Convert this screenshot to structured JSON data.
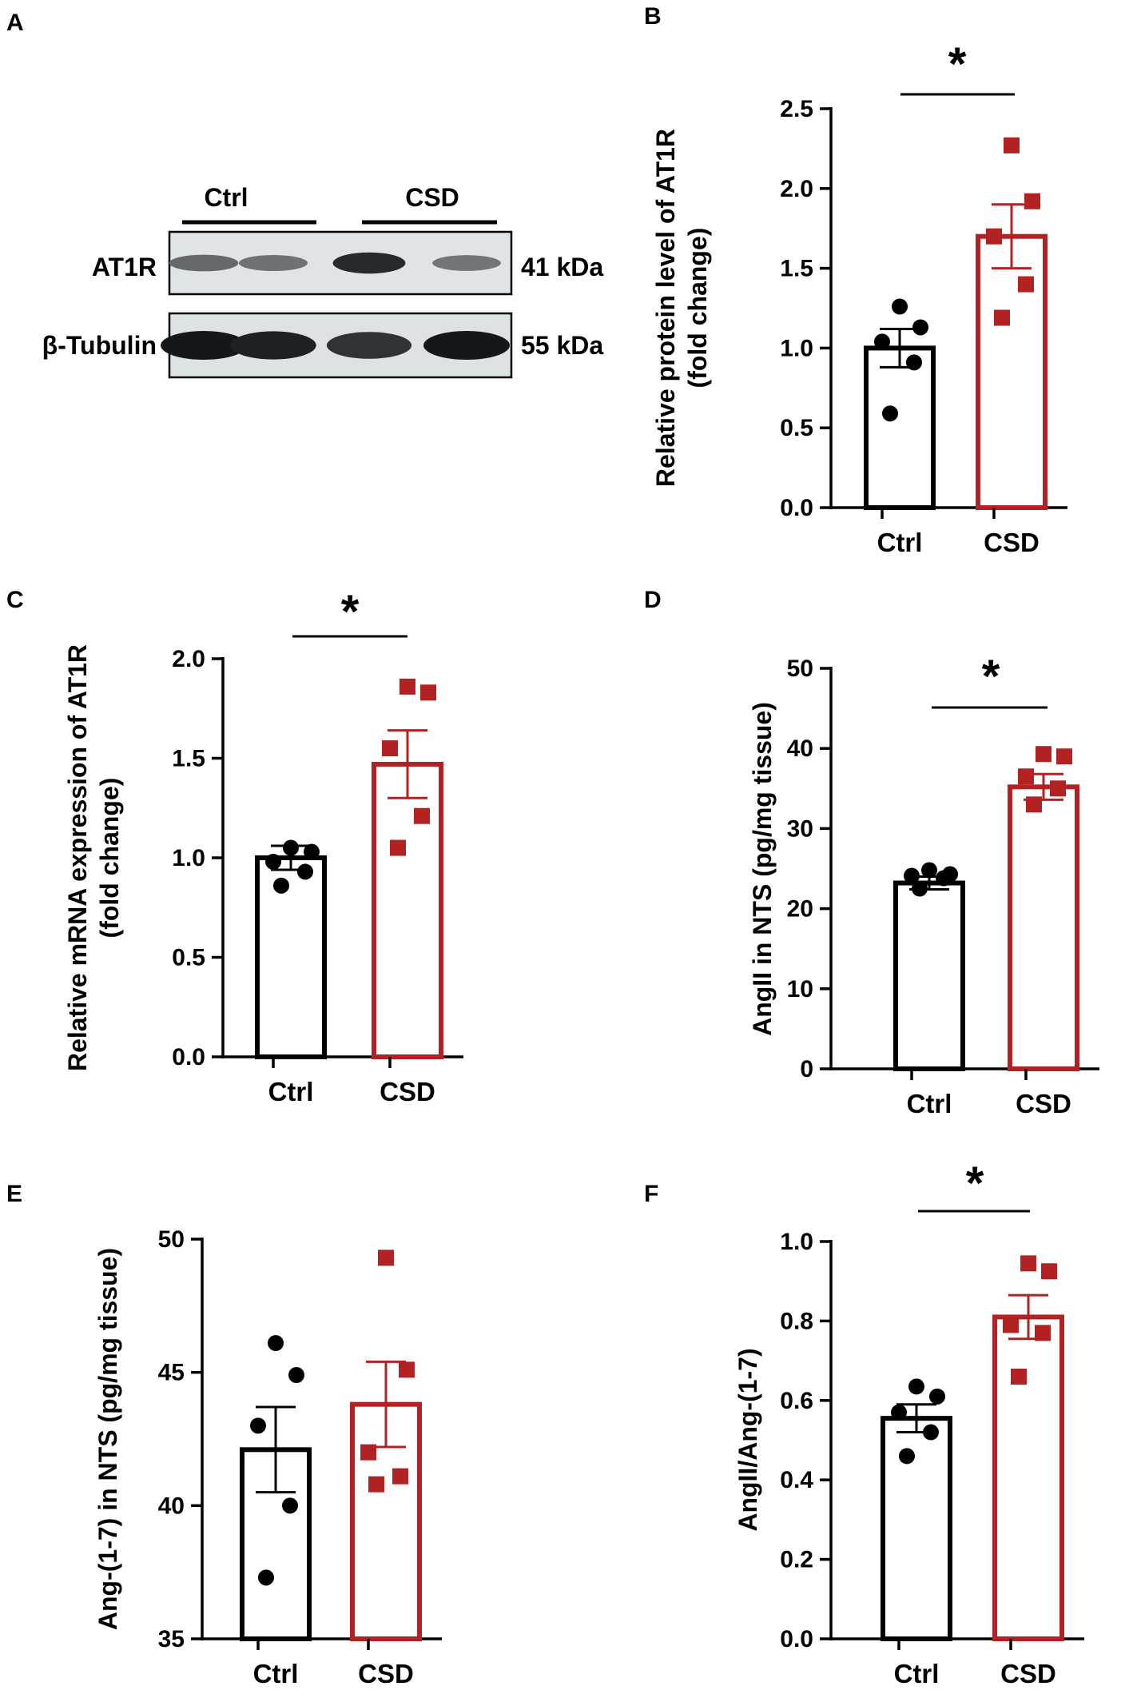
{
  "colors": {
    "ctrl": "#000000",
    "csd": "#b22222",
    "axis": "#000000"
  },
  "western_blot": {
    "panel_label": "A",
    "groups": [
      "Ctrl",
      "CSD"
    ],
    "rows": [
      {
        "name": "AT1R",
        "size": "41 kDa",
        "band_intensity": [
          0.55,
          0.5,
          0.9,
          0.48
        ]
      },
      {
        "name": "β-Tubulin",
        "size": "55 kDa",
        "band_intensity": [
          1.0,
          0.95,
          0.85,
          1.0
        ]
      }
    ]
  },
  "chart_data": [
    {
      "panel": "B",
      "type": "bar",
      "categories": [
        "Ctrl",
        "CSD"
      ],
      "means": [
        1.0,
        1.7
      ],
      "sem": [
        0.12,
        0.2
      ],
      "points": [
        [
          1.26,
          1.13,
          1.04,
          0.91,
          0.59
        ],
        [
          2.27,
          1.92,
          1.7,
          1.4,
          1.19
        ]
      ],
      "ylabel": [
        "Relative protein level of AT1R",
        "(fold change)"
      ],
      "ylim": [
        0,
        2.5
      ],
      "yticks": [
        "0.0",
        "0.5",
        "1.0",
        "1.5",
        "2.0",
        "2.5"
      ],
      "significance": "*"
    },
    {
      "panel": "C",
      "type": "bar",
      "categories": [
        "Ctrl",
        "CSD"
      ],
      "means": [
        1.0,
        1.47
      ],
      "sem": [
        0.06,
        0.17
      ],
      "points": [
        [
          1.05,
          1.03,
          0.98,
          0.93,
          0.86
        ],
        [
          1.86,
          1.83,
          1.55,
          1.21,
          1.05
        ]
      ],
      "ylabel": [
        "Relative mRNA expression of AT1R",
        "(fold change)"
      ],
      "ylim": [
        0,
        2.0
      ],
      "yticks": [
        "0.0",
        "0.5",
        "1.0",
        "1.5",
        "2.0"
      ],
      "significance": "*"
    },
    {
      "panel": "D",
      "type": "bar",
      "categories": [
        "Ctrl",
        "CSD"
      ],
      "means": [
        23.2,
        35.2
      ],
      "sem": [
        0.8,
        1.6
      ],
      "points": [
        [
          24.8,
          24.3,
          24.1,
          23.8,
          22.5
        ],
        [
          39.3,
          39.0,
          36.5,
          35.0,
          33.0
        ]
      ],
      "ylabel": [
        "AngII in NTS (pg/mg tissue)"
      ],
      "ylim": [
        0,
        50
      ],
      "yticks": [
        "0",
        "10",
        "20",
        "30",
        "40",
        "50"
      ],
      "significance": "*"
    },
    {
      "panel": "E",
      "type": "bar",
      "categories": [
        "Ctrl",
        "CSD"
      ],
      "means": [
        42.1,
        43.8
      ],
      "sem": [
        1.6,
        1.6
      ],
      "points": [
        [
          46.1,
          44.9,
          43.0,
          40.0,
          37.3
        ],
        [
          49.3,
          45.1,
          42.0,
          41.1,
          40.8
        ]
      ],
      "ylabel": [
        "Ang-(1-7) in NTS (pg/mg tissue)"
      ],
      "ylim": [
        35,
        50
      ],
      "yticks": [
        "35",
        "40",
        "45",
        "50"
      ],
      "significance": ""
    },
    {
      "panel": "F",
      "type": "bar",
      "categories": [
        "Ctrl",
        "CSD"
      ],
      "means": [
        0.555,
        0.81
      ],
      "sem": [
        0.035,
        0.055
      ],
      "points": [
        [
          0.635,
          0.61,
          0.57,
          0.52,
          0.46
        ],
        [
          0.945,
          0.925,
          0.79,
          0.77,
          0.66
        ]
      ],
      "ylabel": [
        "AngII/Ang-(1-7)"
      ],
      "ylim": [
        0,
        1.0
      ],
      "yticks": [
        "0.0",
        "0.2",
        "0.4",
        "0.6",
        "0.8",
        "1.0"
      ],
      "significance": "*"
    }
  ]
}
